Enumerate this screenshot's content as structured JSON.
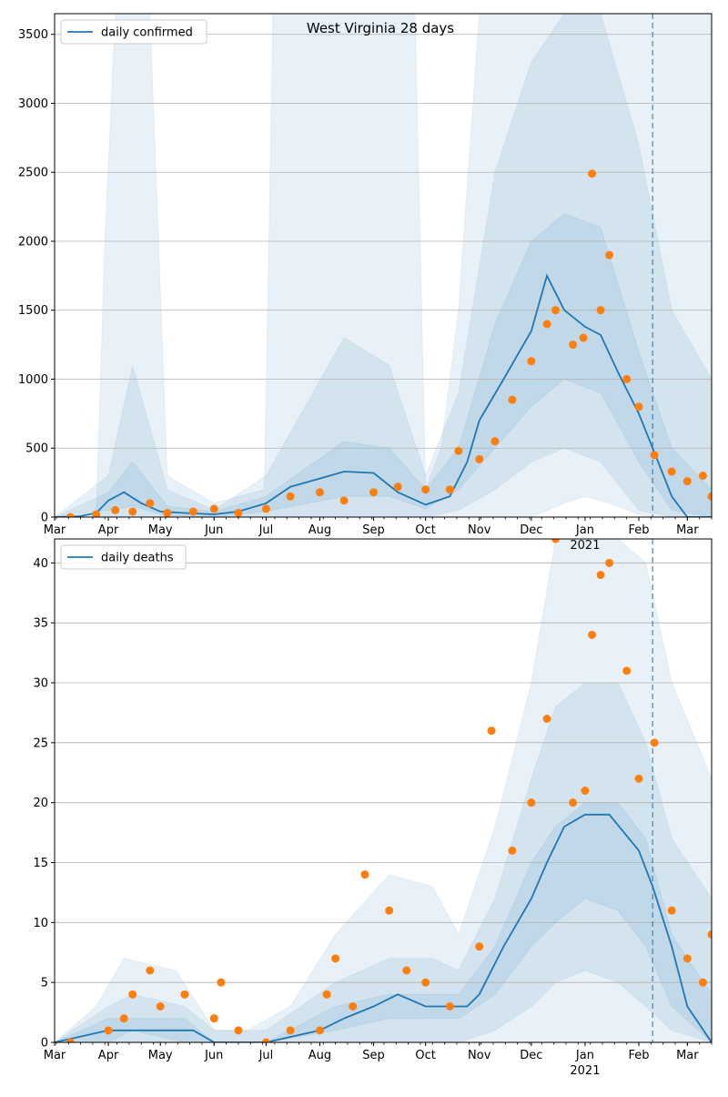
{
  "chart_data": [
    {
      "type": "line",
      "title": "West Virginia 28 days",
      "legend": {
        "entries": [
          "daily confirmed"
        ],
        "placement": "top-left"
      },
      "xlabel": "",
      "ylabel": "",
      "x_ticks": [
        "Apr",
        "May",
        "Jun",
        "Jul",
        "Aug",
        "Sep",
        "Oct",
        "Nov",
        "Dec",
        "Jan",
        "Feb",
        "Mar"
      ],
      "x_year_label": "2021",
      "x_range": [
        "2020-03-01",
        "2021-03-15"
      ],
      "ylim": [
        0,
        3650
      ],
      "y_ticks": [
        0,
        500,
        1000,
        1500,
        2000,
        2500,
        3000,
        3500
      ],
      "grid": "horizontal",
      "forecast_start": "2021-02-09",
      "colors": {
        "line": "#1f77b4",
        "points": "#ff7f0e",
        "band": "#1f77b4"
      },
      "series": [
        {
          "name": "daily confirmed",
          "kind": "line",
          "x": [
            "2020-03-01",
            "2020-03-15",
            "2020-03-25",
            "2020-04-01",
            "2020-04-10",
            "2020-04-20",
            "2020-05-01",
            "2020-05-15",
            "2020-06-01",
            "2020-06-15",
            "2020-07-01",
            "2020-07-15",
            "2020-08-01",
            "2020-08-15",
            "2020-09-01",
            "2020-09-15",
            "2020-10-01",
            "2020-10-15",
            "2020-10-25",
            "2020-11-01",
            "2020-11-15",
            "2020-12-01",
            "2020-12-10",
            "2020-12-20",
            "2021-01-01",
            "2021-01-10",
            "2021-01-20",
            "2021-02-01",
            "2021-02-09",
            "2021-02-20",
            "2021-03-01",
            "2021-03-15"
          ],
          "y": [
            0,
            5,
            30,
            120,
            180,
            100,
            40,
            30,
            20,
            40,
            100,
            220,
            280,
            330,
            320,
            180,
            90,
            150,
            400,
            700,
            1000,
            1350,
            1750,
            1500,
            1380,
            1320,
            1050,
            750,
            500,
            150,
            0,
            0
          ]
        },
        {
          "name": "",
          "kind": "scatter",
          "x": [
            "2020-03-10",
            "2020-03-25",
            "2020-04-05",
            "2020-04-15",
            "2020-04-25",
            "2020-05-05",
            "2020-05-20",
            "2020-06-01",
            "2020-06-15",
            "2020-07-01",
            "2020-07-15",
            "2020-08-01",
            "2020-08-15",
            "2020-09-01",
            "2020-09-15",
            "2020-10-01",
            "2020-10-15",
            "2020-10-20",
            "2020-11-01",
            "2020-11-10",
            "2020-11-20",
            "2020-12-01",
            "2020-12-10",
            "2020-12-15",
            "2020-12-25",
            "2020-12-31",
            "2021-01-05",
            "2021-01-10",
            "2021-01-15",
            "2021-01-25",
            "2021-02-01",
            "2021-02-10",
            "2021-02-20",
            "2021-03-01",
            "2021-03-10",
            "2021-03-15"
          ],
          "y": [
            0,
            20,
            50,
            40,
            100,
            30,
            40,
            60,
            30,
            60,
            150,
            180,
            120,
            180,
            220,
            200,
            200,
            480,
            420,
            550,
            850,
            1130,
            1400,
            1500,
            1250,
            1300,
            2490,
            1500,
            1900,
            1000,
            800,
            450,
            330,
            260,
            300,
            150
          ]
        }
      ],
      "bands": [
        {
          "name": "",
          "x": [
            "2020-03-01",
            "2020-03-25",
            "2020-03-30",
            "2020-04-05",
            "2020-04-25",
            "2020-05-05",
            "2020-06-01",
            "2020-06-30",
            "2020-07-05",
            "2020-07-20",
            "2020-08-15",
            "2020-09-01",
            "2020-09-25",
            "2020-10-01",
            "2020-10-10",
            "2020-10-20",
            "2020-11-01",
            "2020-11-20",
            "2020-12-01",
            "2020-12-20",
            "2021-01-01",
            "2021-01-15",
            "2021-02-01",
            "2021-02-10",
            "2021-03-01",
            "2021-03-15"
          ],
          "low": [
            0,
            0,
            0,
            0,
            0,
            0,
            0,
            0,
            0,
            0,
            0,
            0,
            0,
            0,
            0,
            0,
            0,
            0,
            0,
            100,
            150,
            100,
            20,
            0,
            0,
            0
          ],
          "high": [
            0,
            0,
            2000,
            3650,
            3650,
            300,
            100,
            200,
            3650,
            3650,
            3650,
            3650,
            3650,
            200,
            500,
            1500,
            3650,
            3650,
            3650,
            3650,
            3650,
            3650,
            3650,
            3650,
            3650,
            3650
          ]
        },
        {
          "name": "",
          "x": [
            "2020-03-01",
            "2020-04-01",
            "2020-04-15",
            "2020-05-05",
            "2020-06-01",
            "2020-07-01",
            "2020-08-15",
            "2020-09-10",
            "2020-10-01",
            "2020-10-20",
            "2020-11-10",
            "2020-12-01",
            "2020-12-20",
            "2021-01-10",
            "2021-02-01",
            "2021-02-20",
            "2021-03-15"
          ],
          "low": [
            0,
            0,
            0,
            0,
            0,
            0,
            0,
            0,
            0,
            50,
            200,
            400,
            500,
            400,
            50,
            0,
            0
          ],
          "high": [
            0,
            300,
            1100,
            200,
            50,
            300,
            1300,
            1100,
            300,
            900,
            2500,
            3300,
            3650,
            3650,
            2700,
            1500,
            1000
          ]
        },
        {
          "name": "",
          "x": [
            "2020-03-01",
            "2020-04-01",
            "2020-04-15",
            "2020-05-05",
            "2020-06-01",
            "2020-07-01",
            "2020-08-15",
            "2020-09-10",
            "2020-10-01",
            "2020-10-20",
            "2020-11-10",
            "2020-12-01",
            "2020-12-20",
            "2021-01-10",
            "2021-02-01",
            "2021-02-20",
            "2021-03-15"
          ],
          "low": [
            0,
            50,
            80,
            10,
            0,
            40,
            150,
            150,
            60,
            200,
            500,
            800,
            1000,
            900,
            400,
            50,
            0
          ],
          "high": [
            0,
            180,
            400,
            80,
            40,
            150,
            550,
            500,
            200,
            500,
            1400,
            2000,
            2200,
            2100,
            1200,
            500,
            200
          ]
        }
      ]
    },
    {
      "type": "line",
      "title": "",
      "legend": {
        "entries": [
          "daily deaths"
        ],
        "placement": "top-left"
      },
      "xlabel": "",
      "ylabel": "",
      "x_ticks": [
        "Apr",
        "May",
        "Jun",
        "Jul",
        "Aug",
        "Sep",
        "Oct",
        "Nov",
        "Dec",
        "Jan",
        "Feb",
        "Mar"
      ],
      "x_year_label": "2021",
      "x_range": [
        "2020-03-01",
        "2021-03-15"
      ],
      "ylim": [
        0,
        42
      ],
      "y_ticks": [
        0,
        5,
        10,
        15,
        20,
        25,
        30,
        35,
        40
      ],
      "grid": "horizontal",
      "forecast_start": "2021-02-09",
      "colors": {
        "line": "#1f77b4",
        "points": "#ff7f0e",
        "band": "#1f77b4"
      },
      "series": [
        {
          "name": "daily deaths",
          "kind": "line",
          "x": [
            "2020-03-01",
            "2020-04-01",
            "2020-04-15",
            "2020-05-01",
            "2020-05-20",
            "2020-06-01",
            "2020-07-01",
            "2020-08-01",
            "2020-08-15",
            "2020-09-01",
            "2020-09-15",
            "2020-10-01",
            "2020-10-15",
            "2020-10-25",
            "2020-11-01",
            "2020-11-15",
            "2020-12-01",
            "2020-12-10",
            "2020-12-20",
            "2021-01-01",
            "2021-01-15",
            "2021-02-01",
            "2021-02-09",
            "2021-02-20",
            "2021-03-01",
            "2021-03-15"
          ],
          "y": [
            0,
            1,
            1,
            1,
            1,
            0,
            0,
            1,
            2,
            3,
            4,
            3,
            3,
            3,
            4,
            8,
            12,
            15,
            18,
            19,
            19,
            16,
            13,
            8,
            3,
            0
          ]
        },
        {
          "name": "",
          "kind": "scatter",
          "x": [
            "2020-03-10",
            "2020-04-01",
            "2020-04-10",
            "2020-04-15",
            "2020-04-25",
            "2020-05-01",
            "2020-05-15",
            "2020-06-01",
            "2020-06-05",
            "2020-06-15",
            "2020-07-01",
            "2020-07-15",
            "2020-08-01",
            "2020-08-05",
            "2020-08-10",
            "2020-08-20",
            "2020-08-27",
            "2020-09-10",
            "2020-09-20",
            "2020-10-01",
            "2020-10-15",
            "2020-11-01",
            "2020-11-08",
            "2020-11-20",
            "2020-12-01",
            "2020-12-10",
            "2020-12-15",
            "2020-12-25",
            "2021-01-01",
            "2021-01-05",
            "2021-01-10",
            "2021-01-15",
            "2021-01-25",
            "2021-02-01",
            "2021-02-10",
            "2021-02-20",
            "2021-03-01",
            "2021-03-10",
            "2021-03-15"
          ],
          "y": [
            0,
            1,
            2,
            4,
            6,
            3,
            4,
            2,
            5,
            1,
            0,
            1,
            1,
            4,
            7,
            3,
            14,
            11,
            6,
            5,
            3,
            8,
            26,
            16,
            20,
            27,
            42,
            20,
            21,
            34,
            39,
            40,
            31,
            22,
            25,
            11,
            7,
            5,
            9
          ]
        }
      ],
      "bands": [
        {
          "name": "",
          "x": [
            "2020-03-01",
            "2020-03-25",
            "2020-04-10",
            "2020-05-10",
            "2020-06-01",
            "2020-06-20",
            "2020-07-15",
            "2020-08-10",
            "2020-09-10",
            "2020-10-05",
            "2020-10-20",
            "2020-11-10",
            "2020-12-01",
            "2020-12-15",
            "2021-01-01",
            "2021-01-20",
            "2021-02-05",
            "2021-02-20",
            "2021-03-15"
          ],
          "low": [
            0,
            0,
            0,
            0,
            0,
            0,
            0,
            0,
            0,
            0,
            0,
            0,
            0,
            0,
            0,
            0,
            0,
            0,
            0
          ],
          "high": [
            0,
            3,
            7,
            6,
            1,
            1,
            3,
            9,
            14,
            13,
            9,
            18,
            30,
            42,
            42,
            42,
            40,
            30,
            22
          ]
        },
        {
          "name": "",
          "x": [
            "2020-03-01",
            "2020-04-01",
            "2020-04-15",
            "2020-05-15",
            "2020-06-01",
            "2020-07-01",
            "2020-08-10",
            "2020-09-10",
            "2020-10-05",
            "2020-10-20",
            "2020-11-10",
            "2020-12-01",
            "2020-12-15",
            "2021-01-01",
            "2021-01-20",
            "2021-02-05",
            "2021-02-20",
            "2021-03-15"
          ],
          "low": [
            0,
            0,
            0,
            0,
            0,
            0,
            0,
            0,
            0,
            0,
            1,
            3,
            5,
            6,
            5,
            3,
            1,
            0
          ],
          "high": [
            0,
            3,
            4,
            3,
            1,
            1,
            5,
            7,
            7,
            6,
            12,
            22,
            28,
            30,
            30,
            25,
            17,
            12
          ]
        },
        {
          "name": "",
          "x": [
            "2020-03-01",
            "2020-04-01",
            "2020-04-15",
            "2020-05-15",
            "2020-06-01",
            "2020-07-01",
            "2020-08-10",
            "2020-09-10",
            "2020-10-05",
            "2020-10-20",
            "2020-11-10",
            "2020-12-01",
            "2020-12-15",
            "2021-01-01",
            "2021-01-20",
            "2021-02-05",
            "2021-02-20",
            "2021-03-15"
          ],
          "low": [
            0,
            0,
            1,
            0,
            0,
            0,
            1,
            2,
            2,
            2,
            4,
            8,
            10,
            12,
            11,
            8,
            3,
            0
          ],
          "high": [
            0,
            2,
            2,
            2,
            0,
            0,
            3,
            4,
            4,
            4,
            8,
            15,
            18,
            20,
            20,
            17,
            9,
            4
          ]
        }
      ]
    }
  ]
}
